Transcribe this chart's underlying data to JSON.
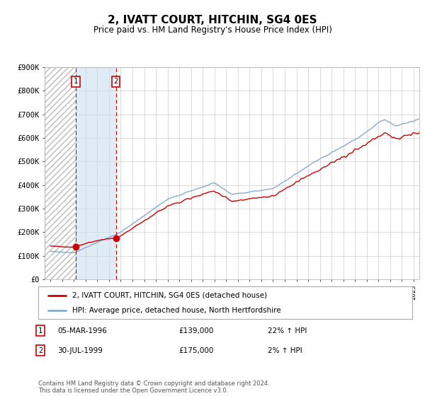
{
  "title": "2, IVATT COURT, HITCHIN, SG4 0ES",
  "subtitle": "Price paid vs. HM Land Registry's House Price Index (HPI)",
  "legend_line1": "2, IVATT COURT, HITCHIN, SG4 0ES (detached house)",
  "legend_line2": "HPI: Average price, detached house, North Hertfordshire",
  "footer": "Contains HM Land Registry data © Crown copyright and database right 2024.\nThis data is licensed under the Open Government Licence v3.0.",
  "sale1_label": "1",
  "sale1_date": "05-MAR-1996",
  "sale1_price": "£139,000",
  "sale1_hpi": "22% ↑ HPI",
  "sale1_year": 1996.17,
  "sale1_value": 139000,
  "sale2_label": "2",
  "sale2_date": "30-JUL-1999",
  "sale2_price": "£175,000",
  "sale2_hpi": "2% ↑ HPI",
  "sale2_year": 1999.58,
  "sale2_value": 175000,
  "ylim": [
    0,
    900000
  ],
  "yticks": [
    0,
    100000,
    200000,
    300000,
    400000,
    500000,
    600000,
    700000,
    800000,
    900000
  ],
  "ytick_labels": [
    "£0",
    "£100K",
    "£200K",
    "£300K",
    "£400K",
    "£500K",
    "£600K",
    "£700K",
    "£800K",
    "£900K"
  ],
  "xlim_start": 1993.5,
  "xlim_end": 2025.5,
  "hatch_color": "#bbbbbb",
  "shade_color": "#ccdff0",
  "red_line_color": "#cc0000",
  "blue_line_color": "#88aacc",
  "sale_dot_color": "#cc0000",
  "vline_color": "#cc0000",
  "background_color": "#ffffff",
  "grid_color": "#cccccc"
}
